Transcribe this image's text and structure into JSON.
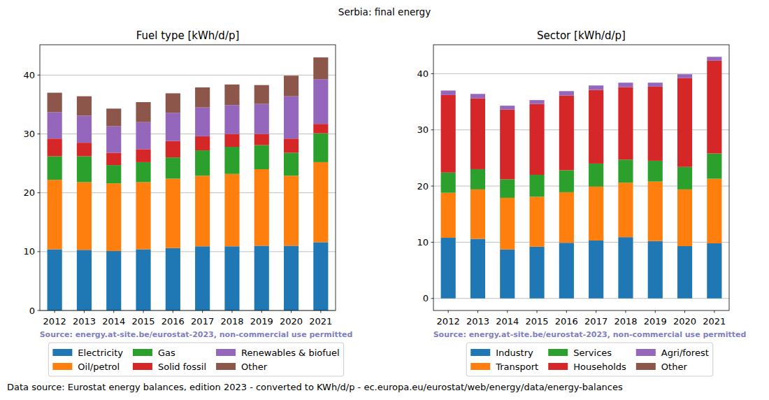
{
  "title": "Serbia: final energy",
  "footer": "Data source: Eurostat energy balances, edition 2023 - converted to KWh/d/p - ec.europa.eu/eurostat/web/energy/data/energy-balances",
  "chart_data": [
    {
      "type": "bar",
      "stacked": true,
      "grid": true,
      "legend": "below",
      "title": "Fuel type [kWh/d/p]",
      "annotations": [
        "Source: energy.at-site.be/eurostat-2023, non-commercial use permitted"
      ],
      "categories": [
        "2012",
        "2013",
        "2014",
        "2015",
        "2016",
        "2017",
        "2018",
        "2019",
        "2020",
        "2021"
      ],
      "ylim": [
        0,
        45.15
      ],
      "yticks": [
        0,
        10,
        20,
        30,
        40
      ],
      "series": [
        {
          "name": "Electricity",
          "color": "#1f77b4",
          "values": [
            10.4,
            10.3,
            10.1,
            10.4,
            10.6,
            10.9,
            10.9,
            11.0,
            11.0,
            11.6
          ]
        },
        {
          "name": "Oil/petrol",
          "color": "#ff7f0e",
          "values": [
            11.8,
            11.5,
            11.5,
            11.4,
            11.8,
            12.0,
            12.3,
            13.0,
            11.9,
            13.6
          ]
        },
        {
          "name": "Gas",
          "color": "#2ca02c",
          "values": [
            4.0,
            4.4,
            3.1,
            3.4,
            3.6,
            4.3,
            4.6,
            4.1,
            3.9,
            4.9
          ]
        },
        {
          "name": "Solid fossil",
          "color": "#d62728",
          "values": [
            3.0,
            2.3,
            2.1,
            2.2,
            2.8,
            2.4,
            2.2,
            1.9,
            2.4,
            1.6
          ]
        },
        {
          "name": "Renewables & biofuel",
          "color": "#9467bd",
          "values": [
            4.5,
            4.6,
            4.5,
            4.6,
            4.8,
            4.9,
            4.9,
            5.1,
            7.2,
            7.6
          ]
        },
        {
          "name": "Other",
          "color": "#8c564b",
          "values": [
            3.3,
            3.3,
            3.0,
            3.4,
            3.3,
            3.4,
            3.5,
            3.2,
            3.5,
            3.7
          ]
        }
      ]
    },
    {
      "type": "bar",
      "stacked": true,
      "grid": true,
      "legend": "below",
      "title": "Sector [kWh/d/p]",
      "annotations": [
        "Source: energy.at-site.be/eurostat-2023, non-commercial use permitted"
      ],
      "categories": [
        "2012",
        "2013",
        "2014",
        "2015",
        "2016",
        "2017",
        "2018",
        "2019",
        "2020",
        "2021"
      ],
      "ylim": [
        -2.15,
        45.15
      ],
      "yticks": [
        0,
        10,
        20,
        30,
        40
      ],
      "series": [
        {
          "name": "Industry",
          "color": "#1f77b4",
          "values": [
            10.8,
            10.6,
            8.7,
            9.2,
            9.9,
            10.3,
            10.9,
            10.2,
            9.3,
            9.8
          ]
        },
        {
          "name": "Transport",
          "color": "#ff7f0e",
          "values": [
            8.0,
            8.8,
            9.2,
            8.9,
            9.0,
            9.6,
            9.7,
            10.6,
            10.1,
            11.5
          ]
        },
        {
          "name": "Services",
          "color": "#2ca02c",
          "values": [
            3.6,
            3.6,
            3.3,
            3.9,
            3.9,
            4.1,
            4.1,
            3.7,
            4.0,
            4.5
          ]
        },
        {
          "name": "Households",
          "color": "#d62728",
          "values": [
            13.8,
            12.6,
            12.4,
            12.6,
            13.3,
            13.1,
            12.9,
            13.2,
            15.8,
            16.5
          ]
        },
        {
          "name": "Agri/forest",
          "color": "#9467bd",
          "values": [
            0.8,
            0.8,
            0.7,
            0.7,
            0.8,
            0.8,
            0.8,
            0.7,
            0.7,
            0.7
          ]
        },
        {
          "name": "Other",
          "color": "#8c564b",
          "values": [
            0,
            0,
            0,
            0,
            0,
            0,
            0,
            0,
            0,
            0
          ]
        }
      ]
    }
  ]
}
